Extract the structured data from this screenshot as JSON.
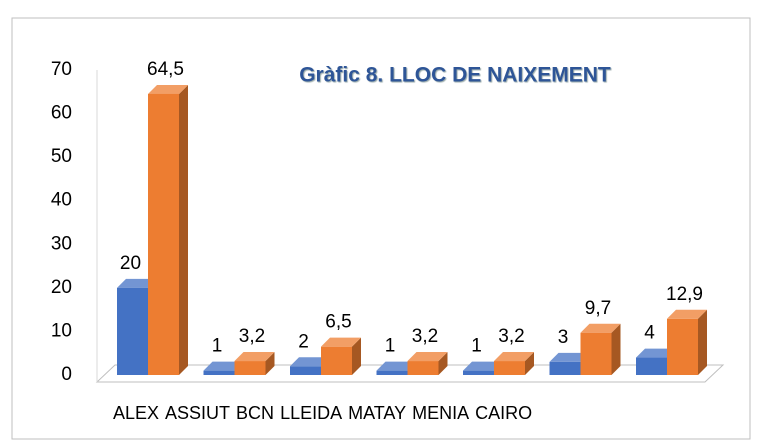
{
  "chart_data": {
    "type": "bar3d",
    "title": "Gràfic 8. LLOC DE NAIXEMENT",
    "categories": [
      "ALEX",
      "ASSIUT",
      "BCN",
      "LLEIDA",
      "MATAY",
      "MENIA",
      "CAIRO"
    ],
    "series": [
      {
        "color": "#4472c4",
        "values": [
          20,
          1,
          2,
          1,
          1,
          3,
          4
        ]
      },
      {
        "color": "#ed7d31",
        "values": [
          64.5,
          3.2,
          6.5,
          3.2,
          3.2,
          9.7,
          12.9
        ],
        "value_labels": [
          "64,5",
          "3,2",
          "6,5",
          "3,2",
          "3,2",
          "9,7",
          "12,9"
        ]
      }
    ],
    "ylim": [
      0,
      70
    ],
    "yticks": [
      0,
      10,
      20,
      30,
      40,
      50,
      60,
      70
    ],
    "grid": false
  }
}
